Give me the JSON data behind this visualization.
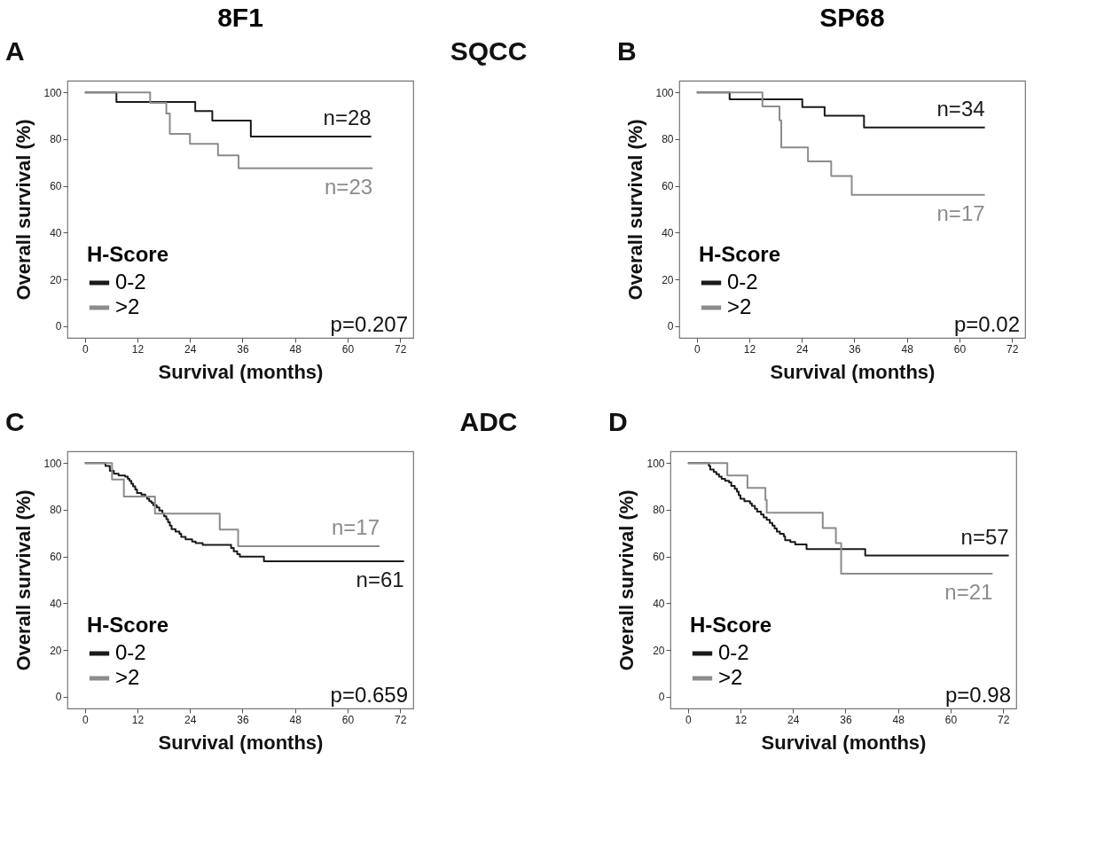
{
  "chart_data": [
    {
      "type": "step",
      "title": "8F1",
      "xlabel": "Survival (months)",
      "ylabel": "Overall survival (%)",
      "xlim": [
        -4,
        75
      ],
      "ylim": [
        -5,
        105
      ],
      "xticks": [
        0,
        12,
        24,
        36,
        48,
        60,
        72
      ],
      "yticks": [
        0,
        20,
        40,
        60,
        80,
        100
      ],
      "grid": false,
      "legend": "bottom left",
      "legend_title": "H-Score",
      "series": [
        {
          "name": "0-2",
          "color": "#1a1a1a",
          "x": [
            0,
            7.2,
            25.2,
            29.1,
            37.9,
            65.4
          ],
          "values": [
            100,
            95.9,
            92,
            87.9,
            81.1,
            81.1
          ]
        },
        {
          "name": ">2",
          "color": "#8c8c8c",
          "x": [
            0,
            14.9,
            18.6,
            19.4,
            24.0,
            30.4,
            35.1,
            65.7
          ],
          "values": [
            100,
            95.5,
            91,
            82.2,
            78,
            73,
            67.5,
            67.5
          ]
        }
      ],
      "annotations": [
        "A",
        "p=0.207",
        "n=28",
        "n=23",
        "SQCC"
      ]
    },
    {
      "type": "step",
      "title": "SP68",
      "xlabel": "Survival (months)",
      "ylabel": "Overall survival (%)",
      "xlim": [
        -4,
        75
      ],
      "ylim": [
        -5,
        105
      ],
      "xticks": [
        0,
        12,
        24,
        36,
        48,
        60,
        72
      ],
      "yticks": [
        0,
        20,
        40,
        60,
        80,
        100
      ],
      "grid": false,
      "legend": "bottom left",
      "legend_title": "H-Score",
      "series": [
        {
          "name": "0-2",
          "color": "#1a1a1a",
          "x": [
            0,
            7.5,
            24.1,
            29.2,
            38.2,
            65.8
          ],
          "values": [
            100,
            97,
            93.7,
            90,
            85,
            85
          ]
        },
        {
          "name": ">2",
          "color": "#8c8c8c",
          "x": [
            0,
            15.0,
            18.9,
            19.3,
            25.4,
            30.7,
            35.4,
            65.8
          ],
          "values": [
            100,
            94,
            88,
            76.5,
            70.5,
            64.2,
            56.2,
            56.2
          ]
        }
      ],
      "annotations": [
        "B",
        "p=0.02",
        "n=34",
        "n=17"
      ]
    },
    {
      "type": "step",
      "xlabel": "Survival (months)",
      "ylabel": "Overall survival (%)",
      "xlim": [
        -4,
        75
      ],
      "ylim": [
        -5,
        105
      ],
      "xticks": [
        0,
        12,
        24,
        36,
        48,
        60,
        72
      ],
      "yticks": [
        0,
        20,
        40,
        60,
        80,
        100
      ],
      "grid": false,
      "legend": "bottom left",
      "legend_title": "H-Score",
      "series": [
        {
          "name": "0-2",
          "color": "#1a1a1a",
          "x": [
            0,
            4.7,
            5.7,
            6.6,
            7.7,
            9.2,
            9.8,
            10.2,
            10.6,
            11.0,
            11.5,
            11.9,
            12.9,
            13.8,
            14.2,
            14.7,
            15.2,
            15.6,
            16.4,
            17.0,
            17.7,
            18.1,
            18.6,
            19.0,
            19.4,
            19.8,
            20.7,
            21.6,
            22.0,
            23.0,
            24.5,
            25.3,
            26.9,
            33.4,
            34.0,
            34.8,
            35.4,
            40.9,
            72.9
          ],
          "values": [
            100,
            98.7,
            96.7,
            95.4,
            94.7,
            94.2,
            93.2,
            92.4,
            91.2,
            90,
            88.7,
            87.2,
            86.5,
            85.7,
            84.7,
            83.7,
            83,
            82,
            81,
            79.7,
            78.4,
            77.2,
            76,
            74.7,
            73.2,
            71.7,
            70.7,
            69.7,
            68.4,
            67.4,
            66.4,
            65.7,
            65,
            63.7,
            62.2,
            61,
            60,
            58,
            58
          ]
        },
        {
          "name": ">2",
          "color": "#8c8c8c",
          "x": [
            0,
            6.2,
            8.9,
            16.0,
            30.8,
            35.0,
            67.3
          ],
          "values": [
            100,
            93,
            85.7,
            78.4,
            71.5,
            64.4,
            64.4
          ]
        }
      ],
      "annotations": [
        "C",
        "p=0.659",
        "n=61",
        "n=17",
        "ADC"
      ]
    },
    {
      "type": "step",
      "xlabel": "Survival (months)",
      "ylabel": "Overall survival (%)",
      "xlim": [
        -4,
        75
      ],
      "ylim": [
        -5,
        105
      ],
      "xticks": [
        0,
        12,
        24,
        36,
        48,
        60,
        72
      ],
      "yticks": [
        0,
        20,
        40,
        60,
        80,
        100
      ],
      "grid": false,
      "legend": "bottom left",
      "legend_title": "H-Score",
      "series": [
        {
          "name": "0-2",
          "color": "#1a1a1a",
          "x": [
            0,
            4.8,
            5.1,
            5.9,
            6.5,
            7.1,
            7.7,
            8.5,
            9.4,
            9.9,
            10.7,
            11.2,
            11.6,
            12.0,
            12.9,
            14.2,
            14.6,
            15.3,
            15.8,
            16.7,
            17.3,
            18.0,
            18.7,
            19.3,
            19.8,
            20.3,
            21.0,
            21.9,
            22.2,
            23.4,
            24.5,
            27.1,
            40.5,
            73.3
          ],
          "values": [
            100,
            98.7,
            97.2,
            96.2,
            95.2,
            94.2,
            93.2,
            92.4,
            91.7,
            90.2,
            89,
            87.7,
            86.2,
            84.7,
            83.7,
            82.7,
            81.7,
            80.4,
            79.2,
            78,
            76.7,
            75.7,
            74.4,
            73.2,
            72,
            70.7,
            69.7,
            68.7,
            67,
            66.2,
            65.2,
            63.2,
            60.4,
            60.4
          ]
        },
        {
          "name": ">2",
          "color": "#8c8c8c",
          "x": [
            0,
            9.0,
            13.6,
            17.7,
            18.0,
            30.8,
            33.8,
            35.0,
            69.6
          ],
          "values": [
            100,
            94.7,
            89.4,
            84.2,
            78.7,
            72.2,
            65.7,
            52.7,
            52.7
          ]
        }
      ],
      "annotations": [
        "D",
        "p=0.98",
        "n=57",
        "n=21"
      ]
    }
  ]
}
